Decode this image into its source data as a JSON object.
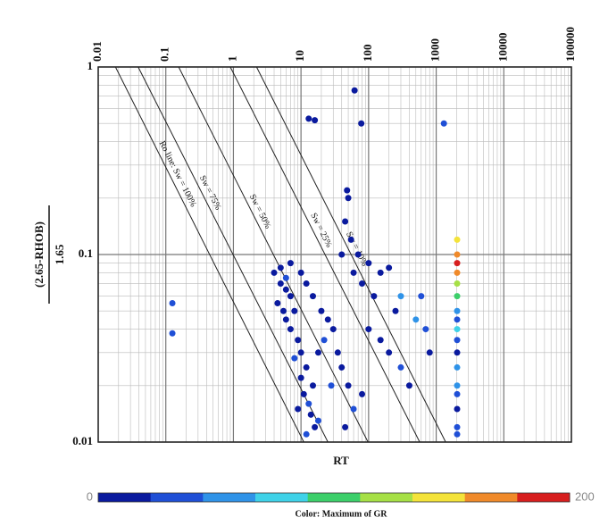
{
  "chart_data": {
    "type": "scatter",
    "x_label": "RT",
    "y_label_numerator": "(2.65-RHOB)",
    "y_label_denominator": "1.65",
    "log_x": true,
    "log_y": true,
    "grid": true,
    "minor_grid": true,
    "xlim": [
      0.01,
      100000
    ],
    "xticks": [
      0.01,
      0.1,
      1,
      10,
      100,
      1000,
      10000,
      100000
    ],
    "ylim": [
      0.01,
      1
    ],
    "yticks": [
      0.01,
      0.1,
      1
    ],
    "x": [
      4,
      5,
      6,
      4.5,
      5.5,
      7,
      8,
      6,
      7,
      9,
      10,
      8,
      12,
      10,
      15,
      11,
      13,
      9,
      14,
      16,
      12,
      18,
      6,
      5,
      7,
      10,
      12,
      15,
      20,
      25,
      30,
      22,
      18,
      35,
      40,
      28,
      50,
      60,
      45,
      80,
      100,
      150,
      200,
      300,
      400,
      250,
      120,
      80,
      60,
      40,
      45,
      50,
      48,
      55,
      70,
      100,
      150,
      200,
      300,
      500,
      700,
      800,
      600,
      62,
      13,
      16,
      78,
      1300,
      0.125,
      0.125,
      2040,
      2040,
      2040,
      2040,
      2040,
      2040,
      2040,
      2040,
      2040,
      2040,
      2040,
      2040,
      2040,
      2040,
      2040,
      2040,
      2040
    ],
    "values": [
      0.08,
      0.07,
      0.065,
      0.055,
      0.05,
      0.06,
      0.05,
      0.045,
      0.04,
      0.035,
      0.03,
      0.028,
      0.025,
      0.022,
      0.02,
      0.018,
      0.016,
      0.015,
      0.014,
      0.012,
      0.011,
      0.013,
      0.075,
      0.085,
      0.09,
      0.08,
      0.07,
      0.06,
      0.05,
      0.045,
      0.04,
      0.035,
      0.03,
      0.03,
      0.025,
      0.02,
      0.02,
      0.015,
      0.012,
      0.018,
      0.04,
      0.035,
      0.03,
      0.025,
      0.02,
      0.05,
      0.06,
      0.07,
      0.08,
      0.1,
      0.15,
      0.2,
      0.22,
      0.12,
      0.1,
      0.09,
      0.08,
      0.085,
      0.06,
      0.045,
      0.04,
      0.03,
      0.06,
      0.75,
      0.53,
      0.52,
      0.5,
      0.5,
      0.055,
      0.038,
      0.12,
      0.1,
      0.09,
      0.08,
      0.07,
      0.06,
      0.05,
      0.045,
      0.04,
      0.035,
      0.03,
      0.025,
      0.02,
      0.018,
      0.015,
      0.012,
      0.011
    ],
    "color_values": [
      15,
      12,
      20,
      10,
      18,
      14,
      22,
      16,
      12,
      20,
      15,
      25,
      18,
      14,
      20,
      16,
      40,
      22,
      18,
      20,
      24,
      30,
      35,
      20,
      18,
      22,
      16,
      14,
      18,
      20,
      16,
      24,
      20,
      22,
      18,
      30,
      20,
      25,
      22,
      20,
      20,
      18,
      22,
      24,
      20,
      18,
      16,
      20,
      22,
      18,
      20,
      16,
      14,
      20,
      22,
      18,
      20,
      16,
      45,
      50,
      30,
      20,
      25,
      12,
      14,
      14,
      16,
      40,
      30,
      35,
      150,
      160,
      180,
      170,
      120,
      100,
      60,
      40,
      80,
      30,
      20,
      60,
      50,
      30,
      20,
      25,
      40
    ],
    "colormap": [
      "#0a1a9e",
      "#1f4fd6",
      "#2f93e8",
      "#3fd2e8",
      "#3ccf6a",
      "#a6e046",
      "#f4e33a",
      "#f08a2a",
      "#d71e1e"
    ],
    "clim": [
      0,
      200
    ],
    "clim_labels": [
      "0",
      "200"
    ],
    "colorbar_title": "Color: Maximum of GR",
    "lines": [
      {
        "label": "Ro line: Sw = 100%",
        "x": [
          0.018,
          11
        ],
        "y": [
          1,
          0.01
        ]
      },
      {
        "label": "Sw = 75%",
        "x": [
          0.039,
          25
        ],
        "y": [
          1,
          0.01
        ]
      },
      {
        "label": "Sw = 50%",
        "x": [
          0.155,
          98
        ],
        "y": [
          1,
          0.01
        ]
      },
      {
        "label": "Sw = 25%",
        "x": [
          0.9,
          570
        ],
        "y": [
          1,
          0.01
        ]
      },
      {
        "label": "Sw = 10%",
        "x": [
          2.2,
          1380
        ],
        "y": [
          1,
          0.01
        ]
      }
    ]
  }
}
